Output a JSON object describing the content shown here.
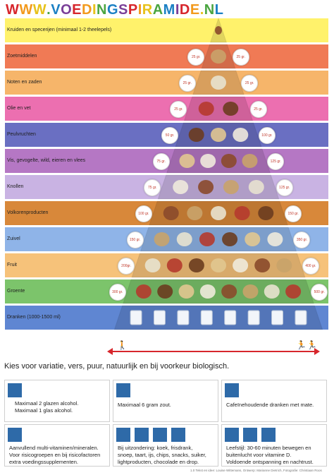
{
  "title": "WWW.VOEDINGSPIRAMIDE.NL",
  "title_colors": [
    "#d7262c",
    "#f29a1d",
    "#e7c21a",
    "#4aa540",
    "#1b80c4",
    "#7a3f98"
  ],
  "tiers": [
    {
      "label": "Kruiden en specerijen (minimaal 1-2 theelepels)",
      "color": "#fff26b",
      "left": "",
      "right": ""
    },
    {
      "label": "Zoetmiddelen",
      "color": "#f07a55",
      "left": "25 gr.",
      "right": "25 gr."
    },
    {
      "label": "Noten en zaden",
      "color": "#f6b56a",
      "left": "25 gr.",
      "right": "25 gr."
    },
    {
      "label": "Olie en vet",
      "color": "#ec6fb0",
      "left": "25 gr.",
      "right": "25 gr."
    },
    {
      "label": "Peulvruchten",
      "color": "#6a6fc2",
      "left": "50 gr.",
      "right": "100 gr."
    },
    {
      "label": "Vis, gevogelte, wild, eieren en  vlees",
      "color": "#b577c4",
      "left": "75 gr.",
      "right": "125 gr."
    },
    {
      "label": "Knollen",
      "color": "#c9b3e3",
      "left": "75 gr.",
      "right": "125 gr."
    },
    {
      "label": "Volkorenproducten",
      "color": "#d8883a",
      "left": "100 gr.",
      "right": "150 gr."
    },
    {
      "label": "Zuivel",
      "color": "#8fb4e8",
      "left": "150 gr.",
      "right": "350 gr."
    },
    {
      "label": "Fruit",
      "color": "#f6c27a",
      "left": "200gr.",
      "right": "400 gr."
    },
    {
      "label": "Groente",
      "color": "#7cc46b",
      "left": "300 gr.",
      "right": "500 gr."
    },
    {
      "label": "Dranken (1000-1500 ml)",
      "color": "#5f86d2",
      "left": "",
      "right": ""
    }
  ],
  "tagline": "Kies voor variatie, vers, puur, natuurlijk en bij voorkeur biologisch.",
  "boxes": [
    {
      "lines": [
        "Maximaal 2 glazen alcohol.",
        "Maximaal 1 glas alcohol."
      ],
      "icons": [
        "glass-icon"
      ]
    },
    {
      "lines": [
        "Maximaal 6 gram zout."
      ],
      "icons": [
        "salt-icon"
      ]
    },
    {
      "lines": [
        "Cafeïnehoudende dranken met mate."
      ],
      "icons": [
        "coffee-icon"
      ]
    },
    {
      "lines": [
        "Aanvullend multi-vitaminen/mineralen.",
        "Voor risicogroepen en bij risicofactoren",
        "extra voedingssupplementen."
      ],
      "icons": [
        "supplement-icon"
      ]
    },
    {
      "lines": [
        "Bij uitzondering: koek, frisdrank,",
        "snoep, taart, ijs, chips, snacks, suiker,",
        "lightproducten, chocolade en drop."
      ],
      "icons": [
        "candy-icon",
        "bottle-icon",
        "cake-icon",
        "snack-icon"
      ]
    },
    {
      "lines": [
        "Leefstijl: 30-60 minuten bewegen en",
        "buitenlucht voor vitamine D.",
        "Voldoende ontspanning en nachtrust."
      ],
      "icons": [
        "exercise-icon",
        "sun-icon",
        "bed-icon"
      ]
    }
  ],
  "credits": "1.0 Tekst en idee: Louise Wittemans, Ontwerp: Marianne Dietrich, Fotografie: Christiaan Roos"
}
